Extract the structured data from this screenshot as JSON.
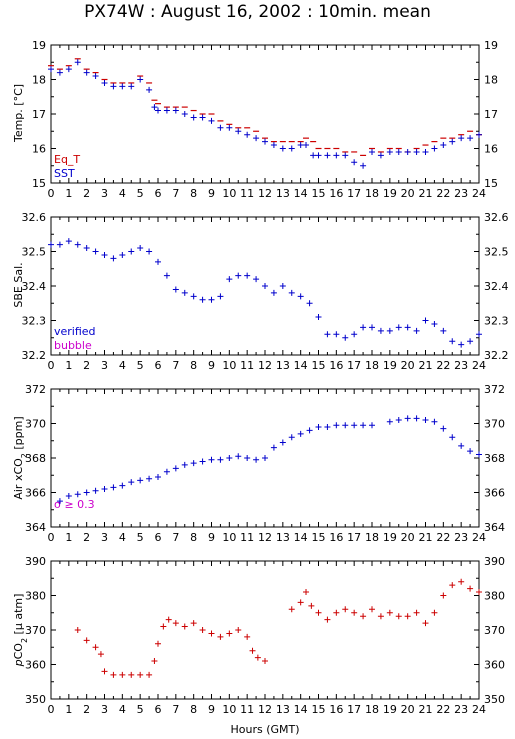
{
  "title": "PX74W : August 16, 2002 : 10min. mean",
  "xlabel": "Hours (GMT)",
  "colors": {
    "red": "#cc0000",
    "blue": "#0000cc",
    "magenta": "#cc00cc",
    "axis": "#000000"
  },
  "chart_data": [
    {
      "type": "scatter",
      "ylabel": "Temp. [°C]",
      "xlim": [
        0,
        24
      ],
      "ylim": [
        15,
        19
      ],
      "xticks": [
        0,
        1,
        2,
        3,
        4,
        5,
        6,
        7,
        8,
        9,
        10,
        11,
        12,
        13,
        14,
        15,
        16,
        17,
        18,
        19,
        20,
        21,
        22,
        23,
        24
      ],
      "yticks": [
        15,
        16,
        17,
        18,
        19
      ],
      "grid": false,
      "legend": [
        "Eq_T",
        "SST"
      ],
      "series": [
        {
          "name": "Eq_T",
          "color": "#cc0000",
          "marker": "dash",
          "x": [
            0.0,
            0.5,
            1.0,
            1.5,
            2.0,
            2.5,
            3.0,
            3.5,
            4.0,
            4.5,
            5.0,
            5.5,
            5.8,
            6.0,
            6.5,
            7.0,
            7.5,
            8.0,
            8.5,
            9.0,
            9.5,
            10.0,
            10.5,
            11.0,
            11.5,
            12.0,
            12.5,
            13.0,
            13.5,
            14.0,
            14.3,
            14.7,
            15.0,
            15.5,
            16.0,
            16.5,
            17.0,
            17.5,
            18.0,
            18.5,
            19.0,
            19.5,
            20.0,
            20.5,
            21.0,
            21.5,
            22.0,
            22.5,
            23.0,
            23.5,
            24.0
          ],
          "y": [
            18.4,
            18.3,
            18.4,
            18.6,
            18.3,
            18.2,
            18.0,
            17.9,
            17.9,
            17.9,
            18.1,
            17.9,
            17.4,
            17.3,
            17.2,
            17.2,
            17.2,
            17.1,
            17.0,
            17.0,
            16.8,
            16.7,
            16.6,
            16.6,
            16.5,
            16.3,
            16.2,
            16.2,
            16.2,
            16.2,
            16.3,
            16.2,
            16.0,
            16.0,
            16.0,
            15.9,
            15.9,
            15.8,
            16.0,
            15.9,
            16.0,
            16.0,
            15.9,
            16.0,
            16.1,
            16.2,
            16.3,
            16.3,
            16.4,
            16.5,
            16.4
          ]
        },
        {
          "name": "SST",
          "color": "#0000cc",
          "marker": "plus",
          "x": [
            0.0,
            0.5,
            1.0,
            1.5,
            2.0,
            2.5,
            3.0,
            3.5,
            4.0,
            4.5,
            5.0,
            5.5,
            5.8,
            6.0,
            6.5,
            7.0,
            7.5,
            8.0,
            8.5,
            9.0,
            9.5,
            10.0,
            10.5,
            11.0,
            11.5,
            12.0,
            12.5,
            13.0,
            13.5,
            14.0,
            14.3,
            14.7,
            15.0,
            15.5,
            16.0,
            16.5,
            17.0,
            17.5,
            18.0,
            18.5,
            19.0,
            19.5,
            20.0,
            20.5,
            21.0,
            21.5,
            22.0,
            22.5,
            23.0,
            23.5,
            24.0
          ],
          "y": [
            18.3,
            18.2,
            18.3,
            18.5,
            18.2,
            18.1,
            17.9,
            17.8,
            17.8,
            17.8,
            18.0,
            17.7,
            17.2,
            17.1,
            17.1,
            17.1,
            17.0,
            16.9,
            16.9,
            16.8,
            16.6,
            16.6,
            16.5,
            16.4,
            16.3,
            16.2,
            16.1,
            16.0,
            16.0,
            16.1,
            16.1,
            15.8,
            15.8,
            15.8,
            15.8,
            15.8,
            15.6,
            15.5,
            15.9,
            15.8,
            15.9,
            15.9,
            15.9,
            15.9,
            15.9,
            16.0,
            16.1,
            16.2,
            16.3,
            16.3,
            16.4
          ]
        }
      ]
    },
    {
      "type": "scatter",
      "ylabel": "SBE Sal.",
      "xlim": [
        0,
        24
      ],
      "ylim": [
        32.2,
        32.6
      ],
      "xticks": [
        0,
        1,
        2,
        3,
        4,
        5,
        6,
        7,
        8,
        9,
        10,
        11,
        12,
        13,
        14,
        15,
        16,
        17,
        18,
        19,
        20,
        21,
        22,
        23,
        24
      ],
      "yticks": [
        32.2,
        32.3,
        32.4,
        32.5,
        32.6
      ],
      "grid": false,
      "legend": [
        "verified",
        "bubble"
      ],
      "series": [
        {
          "name": "verified",
          "color": "#0000cc",
          "marker": "plus",
          "x": [
            0.0,
            0.5,
            1.0,
            1.5,
            2.0,
            2.5,
            3.0,
            3.5,
            4.0,
            4.5,
            5.0,
            5.5,
            6.0,
            6.5,
            7.0,
            7.5,
            8.0,
            8.5,
            9.0,
            9.5,
            10.0,
            10.5,
            11.0,
            11.5,
            12.0,
            12.5,
            13.0,
            13.5,
            14.0,
            14.5,
            15.0,
            15.5,
            16.0,
            16.5,
            17.0,
            17.5,
            18.0,
            18.5,
            19.0,
            19.5,
            20.0,
            20.5,
            21.0,
            21.5,
            22.0,
            22.5,
            23.0,
            23.5,
            24.0
          ],
          "y": [
            32.52,
            32.52,
            32.53,
            32.52,
            32.51,
            32.5,
            32.49,
            32.48,
            32.49,
            32.5,
            32.51,
            32.5,
            32.47,
            32.43,
            32.39,
            32.38,
            32.37,
            32.36,
            32.36,
            32.37,
            32.42,
            32.43,
            32.43,
            32.42,
            32.4,
            32.38,
            32.4,
            32.38,
            32.37,
            32.35,
            32.31,
            32.26,
            32.26,
            32.25,
            32.26,
            32.28,
            32.28,
            32.27,
            32.27,
            32.28,
            32.28,
            32.27,
            32.3,
            32.29,
            32.27,
            32.24,
            32.23,
            32.24,
            32.26
          ]
        }
      ]
    },
    {
      "type": "scatter",
      "ylabel": "Air xCO2 [ppm]",
      "xlim": [
        0,
        24
      ],
      "ylim": [
        364,
        372
      ],
      "xticks": [
        0,
        1,
        2,
        3,
        4,
        5,
        6,
        7,
        8,
        9,
        10,
        11,
        12,
        13,
        14,
        15,
        16,
        17,
        18,
        19,
        20,
        21,
        22,
        23,
        24
      ],
      "yticks": [
        364,
        366,
        368,
        370,
        372
      ],
      "grid": false,
      "annotation": "σ ≥ 0.3",
      "series": [
        {
          "name": "Air xCO2",
          "color": "#0000cc",
          "marker": "plus",
          "x": [
            0.5,
            1.0,
            1.5,
            2.0,
            2.5,
            3.0,
            3.5,
            4.0,
            4.5,
            5.0,
            5.5,
            6.0,
            6.5,
            7.0,
            7.5,
            8.0,
            8.5,
            9.0,
            9.5,
            10.0,
            10.5,
            11.0,
            11.5,
            12.0,
            12.5,
            13.0,
            13.5,
            14.0,
            14.5,
            15.0,
            15.5,
            16.0,
            16.5,
            17.0,
            17.5,
            18.0,
            19.0,
            19.5,
            20.0,
            20.5,
            21.0,
            21.5,
            22.0,
            22.5,
            23.0,
            23.5,
            24.0
          ],
          "y": [
            365.5,
            365.8,
            365.9,
            366.0,
            366.1,
            366.2,
            366.3,
            366.4,
            366.6,
            366.7,
            366.8,
            366.9,
            367.2,
            367.4,
            367.6,
            367.7,
            367.8,
            367.9,
            367.9,
            368.0,
            368.1,
            368.0,
            367.9,
            368.0,
            368.6,
            368.9,
            369.2,
            369.4,
            369.6,
            369.8,
            369.8,
            369.9,
            369.9,
            369.9,
            369.9,
            369.9,
            370.1,
            370.2,
            370.3,
            370.3,
            370.2,
            370.1,
            369.7,
            369.2,
            368.7,
            368.4,
            368.2
          ]
        }
      ]
    },
    {
      "type": "scatter",
      "ylabel": "pCO2 [μ atm]",
      "xlim": [
        0,
        24
      ],
      "ylim": [
        350,
        390
      ],
      "xticks": [
        0,
        1,
        2,
        3,
        4,
        5,
        6,
        7,
        8,
        9,
        10,
        11,
        12,
        13,
        14,
        15,
        16,
        17,
        18,
        19,
        20,
        21,
        22,
        23,
        24
      ],
      "yticks": [
        350,
        360,
        370,
        380,
        390
      ],
      "grid": false,
      "series": [
        {
          "name": "pCO2",
          "color": "#cc0000",
          "marker": "plus",
          "x": [
            1.5,
            2.0,
            2.5,
            2.8,
            3.0,
            3.5,
            4.0,
            4.5,
            5.0,
            5.5,
            5.8,
            6.0,
            6.3,
            6.6,
            7.0,
            7.5,
            8.0,
            8.5,
            9.0,
            9.5,
            10.0,
            10.5,
            11.0,
            11.3,
            11.6,
            12.0,
            13.5,
            14.0,
            14.3,
            14.6,
            15.0,
            15.5,
            16.0,
            16.5,
            17.0,
            17.5,
            18.0,
            18.5,
            19.0,
            19.5,
            20.0,
            20.5,
            21.0,
            21.5,
            22.0,
            22.5,
            23.0,
            23.5,
            24.0
          ],
          "y": [
            370,
            367,
            365,
            363,
            358,
            357,
            357,
            357,
            357,
            357,
            361,
            366,
            371,
            373,
            372,
            371,
            372,
            370,
            369,
            368,
            369,
            370,
            368,
            364,
            362,
            361,
            376,
            378,
            381,
            377,
            375,
            373,
            375,
            376,
            375,
            374,
            376,
            374,
            375,
            374,
            374,
            375,
            372,
            375,
            380,
            383,
            384,
            382,
            381
          ]
        }
      ]
    }
  ]
}
